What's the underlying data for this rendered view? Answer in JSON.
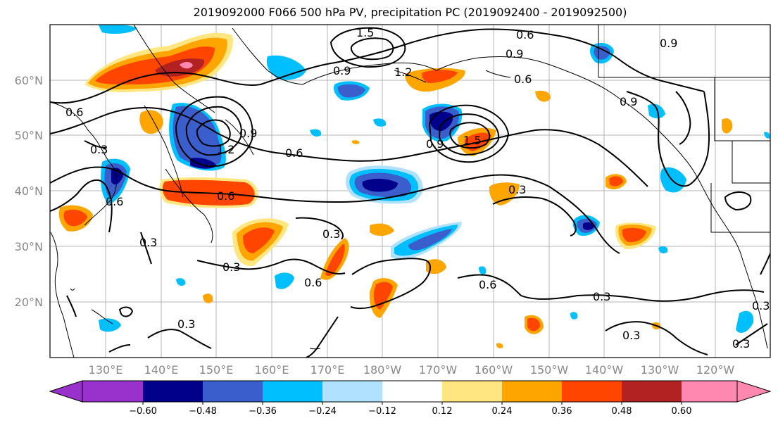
{
  "title": "2019092000 F066 500 hPa PV, precipitation PC (2019092400 - 2019092500)",
  "lat_labels": [
    "60°N",
    "50°N",
    "40°N",
    "30°N",
    "20°N"
  ],
  "lon_labels": [
    "130°E",
    "140°E",
    "150°E",
    "160°E",
    "170°E",
    "180°W",
    "170°W",
    "160°W",
    "150°W",
    "140°W",
    "130°W",
    "120°W"
  ],
  "colorbar": {
    "ticks": [
      "−0.60",
      "−0.48",
      "−0.36",
      "−0.24",
      "−0.12",
      "0.12",
      "0.24",
      "0.36",
      "0.48",
      "0.60"
    ],
    "colors": [
      "#9932cc",
      "#00008b",
      "#3a5fcd",
      "#00bfff",
      "#b0e2ff",
      "#ffffff",
      "#ffe680",
      "#ffa500",
      "#ff4500",
      "#b22222",
      "#ff88b0"
    ]
  },
  "contour_labels": [
    "1.5",
    "0.6",
    "0.9",
    "1.2",
    "0.9",
    "0.6",
    "0.9",
    "0.6",
    "0.3",
    "0.6",
    "1.2",
    "0.9",
    "0.6",
    "0.3",
    "0.3",
    "0.6",
    "1.5",
    "0.9",
    "0.3",
    "0.3",
    "0.3",
    "0.6",
    "0.3",
    "0.3",
    "0.3",
    "0.6",
    "0.9",
    "0.3"
  ]
}
